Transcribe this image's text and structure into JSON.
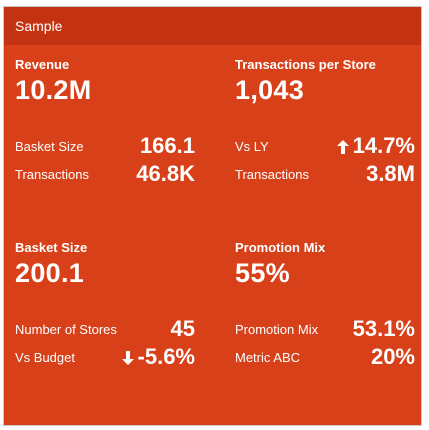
{
  "card": {
    "title": "Sample",
    "background_color": "#d8401a",
    "header_color": "#c33311"
  },
  "quad_top_left": {
    "label": "Revenue",
    "value": "10.2M",
    "rows": [
      {
        "label": "Basket Size",
        "value": "166.1"
      },
      {
        "label": "Transactions",
        "value": "46.8K"
      }
    ]
  },
  "quad_top_right": {
    "label": "Transactions per Store",
    "value": "1,043",
    "rows": [
      {
        "label": "Vs LY",
        "value": "14.7%",
        "icon": "arrow-up-icon"
      },
      {
        "label": "Transactions",
        "value": "3.8M"
      }
    ]
  },
  "quad_bottom_left": {
    "label": "Basket Size",
    "value": "200.1",
    "rows": [
      {
        "label": "Number of Stores",
        "value": "45"
      },
      {
        "label": "Vs Budget",
        "value": "-5.6%",
        "icon": "arrow-down-icon"
      }
    ]
  },
  "quad_bottom_right": {
    "label": "Promotion Mix",
    "value": "55%",
    "rows": [
      {
        "label": "Promotion Mix",
        "value": "53.1%"
      },
      {
        "label": "Metric ABC",
        "value": "20%"
      }
    ]
  }
}
